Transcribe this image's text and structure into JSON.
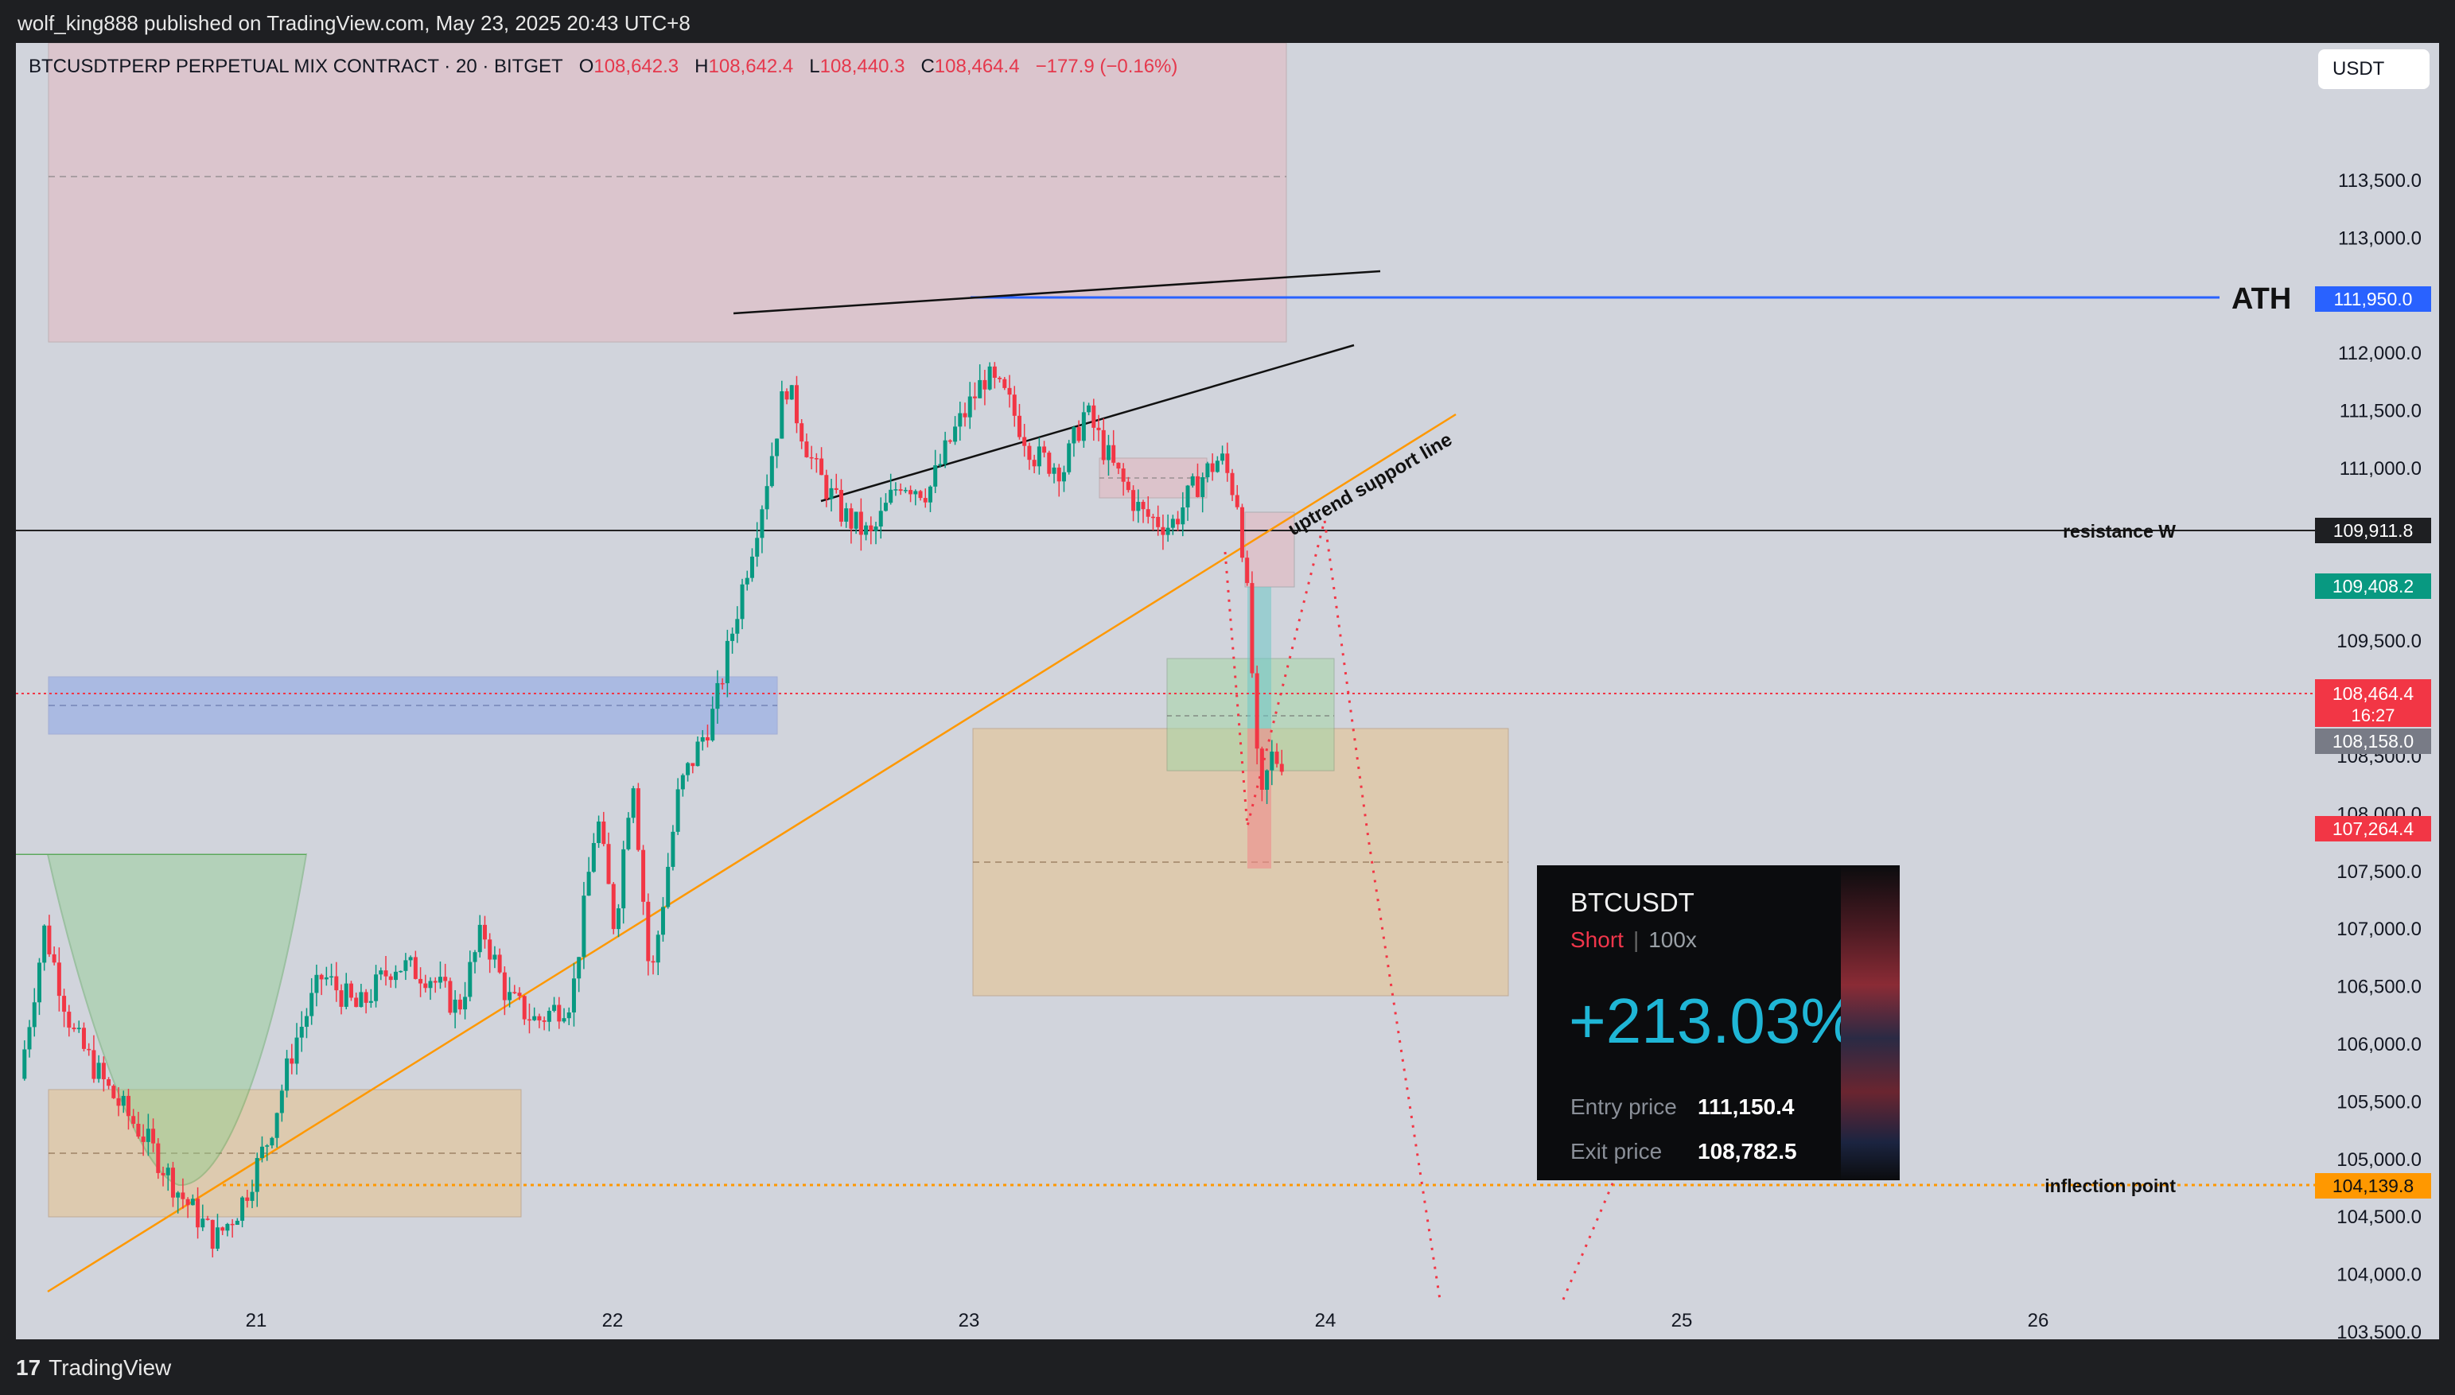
{
  "header": {
    "published": "wolf_king888 published on TradingView.com, May 23, 2025 20:43 UTC+8"
  },
  "legend": {
    "symbol": "BTCUSDTPERP PERPETUAL MIX CONTRACT · 20 · BITGET",
    "o_label": "O",
    "o_value": "108,642.3",
    "h_label": "H",
    "h_value": "108,642.4",
    "l_label": "L",
    "l_value": "108,440.3",
    "c_label": "C",
    "c_value": "108,464.4",
    "change": "−177.9 (−0.16%)"
  },
  "currency": "USDT",
  "footer": {
    "brand": "TradingView",
    "logo_mark": "17"
  },
  "annotations": {
    "ath": "ATH",
    "resistance": "resistance W",
    "trendline": "uptrend support line",
    "inflection": "inflection point"
  },
  "price_tags": {
    "ath": "111,950.0",
    "resistance": "109,911.8",
    "green": "109,408.2",
    "last": "108,464.4",
    "countdown": "16:27",
    "gray": "108,158.0",
    "red": "107,264.4",
    "inflection": "104,139.8"
  },
  "card": {
    "pair": "BTCUSDT",
    "direction": "Short",
    "leverage": "100x",
    "pnl": "+213.03%",
    "entry_label": "Entry price",
    "entry_value": "111,150.4",
    "exit_label": "Exit price",
    "exit_value": "108,782.5"
  },
  "colors": {
    "background": "#d1d4dc",
    "up": "#089981",
    "down": "#f23645",
    "ath_line": "#2962ff",
    "trend_line": "#ff9800",
    "projection": "#f23645"
  },
  "chart_data": {
    "type": "candlestick",
    "title": "BTCUSDTPERP PERPETUAL MIX CONTRACT · 20 · BITGET",
    "x_ticks": [
      "21",
      "22",
      "23",
      "24",
      "25",
      "26"
    ],
    "y_ticks": [
      "103,500.0",
      "104,000.0",
      "104,500.0",
      "105,000.0",
      "105,500.0",
      "106,000.0",
      "106,500.0",
      "107,000.0",
      "107,500.0",
      "108,000.0",
      "108,500.0",
      "109,000.0",
      "109,500.0",
      "110,000.0",
      "110,500.0",
      "111,000.0",
      "111,500.0",
      "112,000.0",
      "112,500.0",
      "113,000.0",
      "113,500.0"
    ],
    "y_tick_values": [
      103500,
      104000,
      104500,
      105000,
      105500,
      106000,
      106500,
      107000,
      107500,
      108000,
      108500,
      109000,
      109500,
      110000,
      110500,
      111000,
      111500,
      112000,
      112500,
      113000,
      113500
    ],
    "ylim": [
      103200,
      114000
    ],
    "xlim": [
      20.35,
      26.55
    ],
    "price_path": [
      [
        20.35,
        105700
      ],
      [
        20.42,
        107000
      ],
      [
        20.5,
        106100
      ],
      [
        20.6,
        105600
      ],
      [
        20.7,
        105200
      ],
      [
        20.8,
        104700
      ],
      [
        20.9,
        104300
      ],
      [
        20.97,
        104600
      ],
      [
        21.05,
        105200
      ],
      [
        21.12,
        106000
      ],
      [
        21.2,
        106600
      ],
      [
        21.3,
        106300
      ],
      [
        21.4,
        106700
      ],
      [
        21.5,
        106600
      ],
      [
        21.58,
        106300
      ],
      [
        21.65,
        107000
      ],
      [
        21.72,
        106400
      ],
      [
        21.8,
        106200
      ],
      [
        21.9,
        106400
      ],
      [
        21.97,
        108000
      ],
      [
        22.02,
        107000
      ],
      [
        22.07,
        108400
      ],
      [
        22.12,
        106500
      ],
      [
        22.2,
        108200
      ],
      [
        22.3,
        108900
      ],
      [
        22.38,
        110000
      ],
      [
        22.44,
        110800
      ],
      [
        22.5,
        111750
      ],
      [
        22.58,
        111000
      ],
      [
        22.66,
        110600
      ],
      [
        22.74,
        110400
      ],
      [
        22.82,
        110900
      ],
      [
        22.9,
        110800
      ],
      [
        22.97,
        111300
      ],
      [
        23.06,
        111800
      ],
      [
        23.12,
        111600
      ],
      [
        23.2,
        111100
      ],
      [
        23.28,
        111000
      ],
      [
        23.34,
        111500
      ],
      [
        23.42,
        111000
      ],
      [
        23.5,
        110600
      ],
      [
        23.58,
        110500
      ],
      [
        23.66,
        110900
      ],
      [
        23.72,
        111100
      ],
      [
        23.77,
        110700
      ],
      [
        23.8,
        109700
      ],
      [
        23.83,
        108000
      ],
      [
        23.86,
        108500
      ],
      [
        23.88,
        108470
      ]
    ],
    "levels": [
      {
        "name": "ATH",
        "price": 111950.0
      },
      {
        "name": "resistance W",
        "price": 109911.8
      },
      {
        "name": "inflection point",
        "price": 104139.8
      },
      {
        "name": "last",
        "price": 108464.4
      }
    ],
    "grid": false
  }
}
